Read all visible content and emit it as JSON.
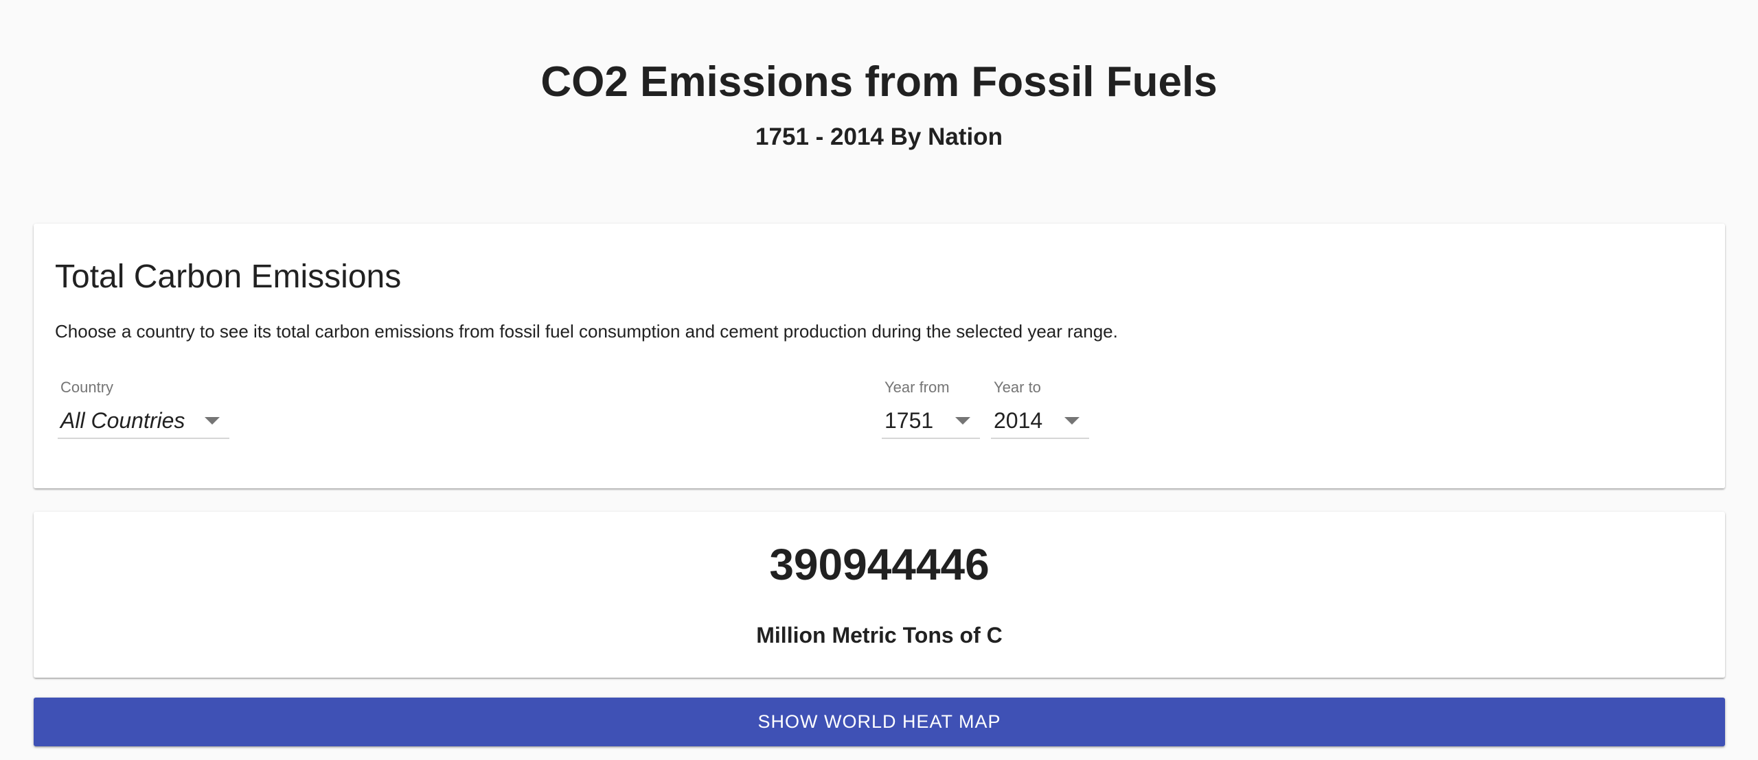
{
  "header": {
    "title": "CO2 Emissions from Fossil Fuels",
    "subtitle": "1751 - 2014 By Nation"
  },
  "filter_card": {
    "title": "Total Carbon Emissions",
    "description": "Choose a country to see its total carbon emissions from fossil fuel consumption and cement production during the selected year range.",
    "country": {
      "label": "Country",
      "value": "All Countries"
    },
    "year_from": {
      "label": "Year from",
      "value": "1751"
    },
    "year_to": {
      "label": "Year to",
      "value": "2014"
    }
  },
  "result_card": {
    "value": "390944446",
    "unit": "Million Metric Tons of C"
  },
  "actions": {
    "heatmap_label": "SHOW WORLD HEAT MAP"
  },
  "colors": {
    "background": "#fafafa",
    "card": "#ffffff",
    "primary_button": "#3f51b5",
    "text": "#212121",
    "label": "#757575"
  },
  "icons": {
    "dropdown": "caret-down-icon"
  }
}
